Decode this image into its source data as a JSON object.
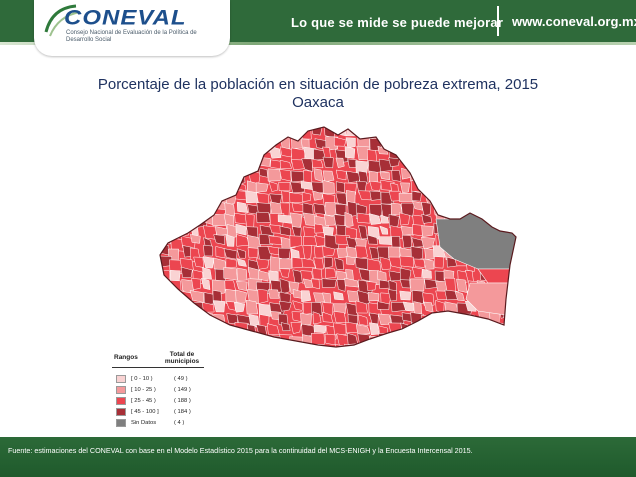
{
  "header": {
    "logo_text": "CONEVAL",
    "logo_subtitle": "Consejo Nacional de Evaluación de la Política de Desarrollo Social",
    "motto": "Lo que se mide se puede mejorar",
    "site_url": "www.coneval.org.mx",
    "color": "#2f6a3a"
  },
  "title": "Porcentaje de la población en situación de pobreza extrema, 2015",
  "subtitle": "Oaxaca",
  "legend": {
    "header_ranges": "Rangos",
    "header_count": "Total de municipios",
    "items": [
      {
        "range": "[ 0 - 10 )",
        "count": "( 49 )",
        "color": "#f9d3d3"
      },
      {
        "range": "[ 10 - 25 )",
        "count": "( 149 )",
        "color": "#f4999b"
      },
      {
        "range": "[ 25 - 45 )",
        "count": "( 188 )",
        "color": "#ec4650"
      },
      {
        "range": "[ 45 - 100 ]",
        "count": "( 184 )",
        "color": "#a72f37"
      },
      {
        "range": "Sin Datos",
        "count": "( 4 )",
        "color": "#7f7f7f"
      }
    ]
  },
  "footer": {
    "source": "Fuente: estimaciones del CONEVAL con base en el Modelo Estadístico 2015 para la continuidad del MCS-ENIGH y la Encuesta Intercensal 2015."
  }
}
